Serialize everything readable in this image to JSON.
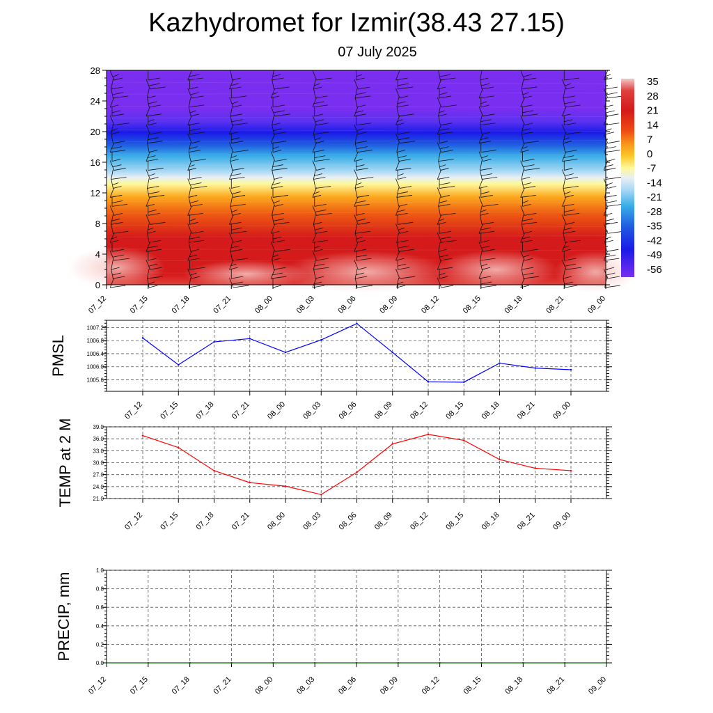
{
  "title": "Kazhydromet for Izmir(38.43 27.15)",
  "subtitle": "07 July 2025",
  "colors": {
    "pmsl_line": "#0000ff",
    "temp_line": "#ff0000",
    "precip_line": "#006400"
  },
  "chart_data": [
    {
      "type": "heatmap",
      "name": "cross-section",
      "x": [
        "07_12",
        "07_15",
        "07_18",
        "07_21",
        "08_00",
        "08_03",
        "08_06",
        "08_09",
        "08_12",
        "08_15",
        "08_18",
        "08_21",
        "09_00"
      ],
      "yticks": [
        0,
        4,
        8,
        12,
        16,
        20,
        24,
        28
      ],
      "ylim": [
        0,
        28
      ],
      "colorbar": {
        "labels": [
          "35",
          "28",
          "21",
          "14",
          "7",
          "0",
          "-7",
          "-14",
          "-21",
          "-28",
          "-35",
          "-42",
          "-49",
          "-56"
        ]
      },
      "wind_barbs": true
    },
    {
      "type": "line",
      "name": "pmsl",
      "ylabel": "PMSL",
      "x": [
        "07_12",
        "07_15",
        "07_18",
        "07_21",
        "08_00",
        "08_03",
        "08_06",
        "08_09",
        "08_12",
        "08_15",
        "08_18",
        "08_21",
        "09_00"
      ],
      "values": [
        1006.88,
        1006.06,
        1006.76,
        1006.86,
        1006.44,
        1006.82,
        1007.32,
        1006.44,
        1005.54,
        1005.53,
        1006.11,
        1005.96,
        1005.91
      ],
      "yticks": [
        "1005.6",
        "1006.0",
        "1006.4",
        "1006.8",
        "1007.2"
      ],
      "ylim": [
        1005.25,
        1007.42
      ],
      "grid": true
    },
    {
      "type": "line",
      "name": "temp",
      "ylabel": "TEMP at 2 M",
      "x": [
        "07_12",
        "07_15",
        "07_18",
        "07_21",
        "08_00",
        "08_03",
        "08_06",
        "08_09",
        "08_12",
        "08_15",
        "08_18",
        "08_21",
        "09_00"
      ],
      "values": [
        36.8,
        33.8,
        28.0,
        25.0,
        24.1,
        22.0,
        27.6,
        34.7,
        37.1,
        35.6,
        30.8,
        28.6,
        28.0
      ],
      "yticks": [
        "21.0",
        "24.0",
        "27.0",
        "30.0",
        "33.0",
        "36.0",
        "39.0"
      ],
      "ylim": [
        21.0,
        39.0
      ],
      "grid": true
    },
    {
      "type": "line",
      "name": "precip",
      "ylabel": "PRECIP, mm",
      "x": [
        "07_12",
        "07_15",
        "07_18",
        "07_21",
        "08_00",
        "08_03",
        "08_06",
        "08_09",
        "08_12",
        "08_15",
        "08_18",
        "08_21",
        "09_00"
      ],
      "values": [
        0,
        0,
        0,
        0,
        0,
        0,
        0,
        0,
        0,
        0,
        0,
        0,
        0
      ],
      "yticks": [
        "0.0",
        "0.2",
        "0.4",
        "0.6",
        "0.8",
        "1.0"
      ],
      "ylim": [
        0.0,
        1.0
      ],
      "grid": true
    }
  ]
}
